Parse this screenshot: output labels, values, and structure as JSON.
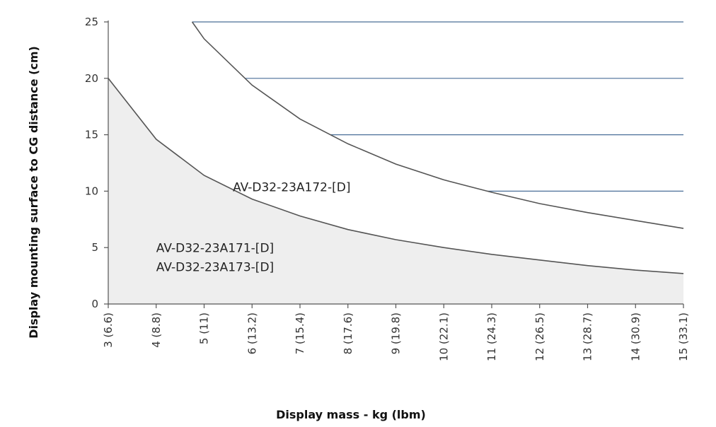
{
  "chart_data": {
    "type": "area",
    "title": "",
    "xlabel": "Display mass - kg (lbm)",
    "ylabel": "Display mounting surface to CG distance (cm)",
    "xlim": [
      3,
      15
    ],
    "ylim": [
      0,
      25
    ],
    "grid": false,
    "x_tick_values": [
      3,
      4,
      5,
      6,
      7,
      8,
      9,
      10,
      11,
      12,
      13,
      14,
      15
    ],
    "x_tick_labels": [
      "3 (6.6)",
      "4 (8.8)",
      "5 (11)",
      "6 (13.2)",
      "7 (15.4)",
      "8 (17.6)",
      "9 (19.8)",
      "10 (22.1)",
      "11 (24.3)",
      "12 (26.5)",
      "13 (28.7)",
      "14 (30.9)",
      "15 (33.1)"
    ],
    "y_tick_values": [
      0,
      5,
      10,
      15,
      20,
      25
    ],
    "y_tick_labels": [
      "0",
      "5",
      "10",
      "15",
      "20",
      "25"
    ],
    "series": [
      {
        "values": [
          [
            3,
            20.0
          ],
          [
            4,
            14.6
          ],
          [
            5,
            11.4
          ],
          [
            6,
            9.3
          ],
          [
            7,
            7.8
          ],
          [
            8,
            6.6
          ],
          [
            9,
            5.7
          ],
          [
            10,
            5.0
          ],
          [
            11,
            4.4
          ],
          [
            12,
            3.9
          ],
          [
            13,
            3.4
          ],
          [
            14,
            3.0
          ],
          [
            15,
            2.7
          ]
        ],
        "fill": "#eeeeee",
        "stroke": "#555555"
      },
      {
        "values": [
          [
            4.75,
            25.0
          ],
          [
            5,
            23.5
          ],
          [
            6,
            19.4
          ],
          [
            7,
            16.4
          ],
          [
            8,
            14.2
          ],
          [
            9,
            12.4
          ],
          [
            10,
            11.0
          ],
          [
            11,
            9.9
          ],
          [
            12,
            8.9
          ],
          [
            13,
            8.1
          ],
          [
            14,
            7.4
          ],
          [
            15,
            6.7
          ]
        ],
        "fill": "none",
        "stroke": "#555555"
      }
    ],
    "hatch_lines": {
      "y_values": [
        10,
        15,
        20,
        25
      ],
      "x_end": 15,
      "color": "#4a6f98"
    },
    "annotations": [
      {
        "text": "AV-D32-23A172-[D]",
        "x": 5.6,
        "y": 10.0
      },
      {
        "text": "AV-D32-23A171-[D]",
        "x": 4.0,
        "y": 4.6
      },
      {
        "text": "AV-D32-23A173-[D]",
        "x": 4.0,
        "y": 2.9
      }
    ]
  }
}
